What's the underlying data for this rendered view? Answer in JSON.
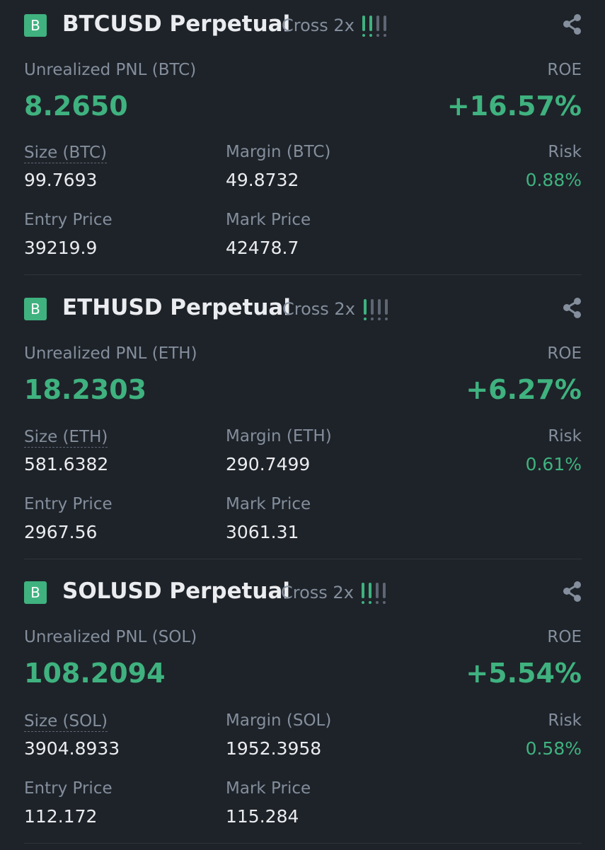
{
  "colors": {
    "background": "#1e2329",
    "positive": "#3fb27f",
    "label": "#848e9c",
    "text": "#eaecef",
    "risk_inactive": "#5e6673"
  },
  "positions": [
    {
      "side_badge": "B",
      "symbol": "BTCUSD Perpetual",
      "margin_mode": "Cross 2x",
      "risk_level_bars": 2,
      "pnl_label": "Unrealized PNL (BTC)",
      "pnl_value": "8.2650",
      "roe_label": "ROE",
      "roe_value": "+16.57%",
      "size_label": "Size (BTC)",
      "size_value": "99.7693",
      "margin_label": "Margin (BTC)",
      "margin_value": "49.8732",
      "risk_label": "Risk",
      "risk_value": "0.88%",
      "entry_label": "Entry Price",
      "entry_value": "39219.9",
      "mark_label": "Mark Price",
      "mark_value": "42478.7"
    },
    {
      "side_badge": "B",
      "symbol": "ETHUSD Perpetual",
      "margin_mode": "Cross 2x",
      "risk_level_bars": 1,
      "pnl_label": "Unrealized PNL (ETH)",
      "pnl_value": "18.2303",
      "roe_label": "ROE",
      "roe_value": "+6.27%",
      "size_label": "Size (ETH)",
      "size_value": "581.6382",
      "margin_label": "Margin (ETH)",
      "margin_value": "290.7499",
      "risk_label": "Risk",
      "risk_value": "0.61%",
      "entry_label": "Entry Price",
      "entry_value": "2967.56",
      "mark_label": "Mark Price",
      "mark_value": "3061.31"
    },
    {
      "side_badge": "B",
      "symbol": "SOLUSD Perpetual",
      "margin_mode": "Cross 2x",
      "risk_level_bars": 2,
      "pnl_label": "Unrealized PNL (SOL)",
      "pnl_value": "108.2094",
      "roe_label": "ROE",
      "roe_value": "+5.54%",
      "size_label": "Size (SOL)",
      "size_value": "3904.8933",
      "margin_label": "Margin (SOL)",
      "margin_value": "1952.3958",
      "risk_label": "Risk",
      "risk_value": "0.58%",
      "entry_label": "Entry Price",
      "entry_value": "112.172",
      "mark_label": "Mark Price",
      "mark_value": "115.284"
    }
  ],
  "icons": {
    "share": "share-icon",
    "risk": "risk-level-icon"
  }
}
